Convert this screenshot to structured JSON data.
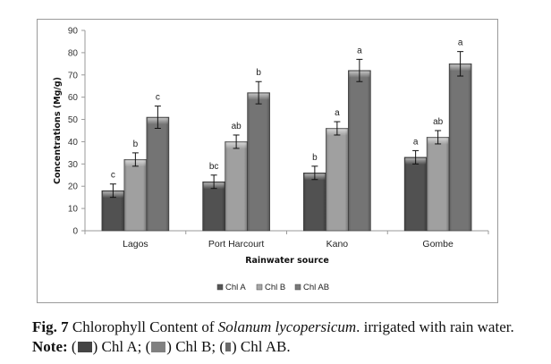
{
  "chart_data": {
    "type": "bar",
    "title": "",
    "xlabel": "Rainwater source",
    "ylabel": "Concentrations (Mg/g)",
    "ylim": [
      0,
      90
    ],
    "yticks": [
      0,
      10,
      20,
      30,
      40,
      50,
      60,
      70,
      80,
      90
    ],
    "grid": false,
    "legend_position": "bottom",
    "categories": [
      "Lagos",
      "Port Harcourt",
      "Kano",
      "Gombe"
    ],
    "series": [
      {
        "name": "Chl A",
        "color": "#555555",
        "values": [
          18,
          22,
          26,
          33
        ],
        "errors": [
          3,
          3,
          3,
          3
        ],
        "significance": [
          "c",
          "bc",
          "b",
          "a"
        ]
      },
      {
        "name": "Chl B",
        "color": "#a8a8a8",
        "values": [
          32,
          40,
          46,
          42
        ],
        "errors": [
          3,
          3,
          3,
          3
        ],
        "significance": [
          "b",
          "ab",
          "a",
          "ab"
        ]
      },
      {
        "name": "Chl AB",
        "color": "#7a7a7a",
        "values": [
          51,
          62,
          72,
          75
        ],
        "errors": [
          5,
          5,
          5,
          5.5
        ],
        "significance": [
          "c",
          "b",
          "a",
          "a"
        ]
      }
    ]
  },
  "caption": {
    "fig_label": "Fig. 7",
    "text_1": " Chlorophyll Content of ",
    "species": "Solanum lycopersicum",
    "text_2": ". irrigated with rain water. ",
    "note_label": "Note:",
    "note_a_open": " (",
    "note_a": ") Chl A; (",
    "note_b": ") Chl B; (",
    "note_ab": ") Chl AB.",
    "swatch_colors": [
      "#444444",
      "#808080",
      "#6a6a6a"
    ]
  }
}
